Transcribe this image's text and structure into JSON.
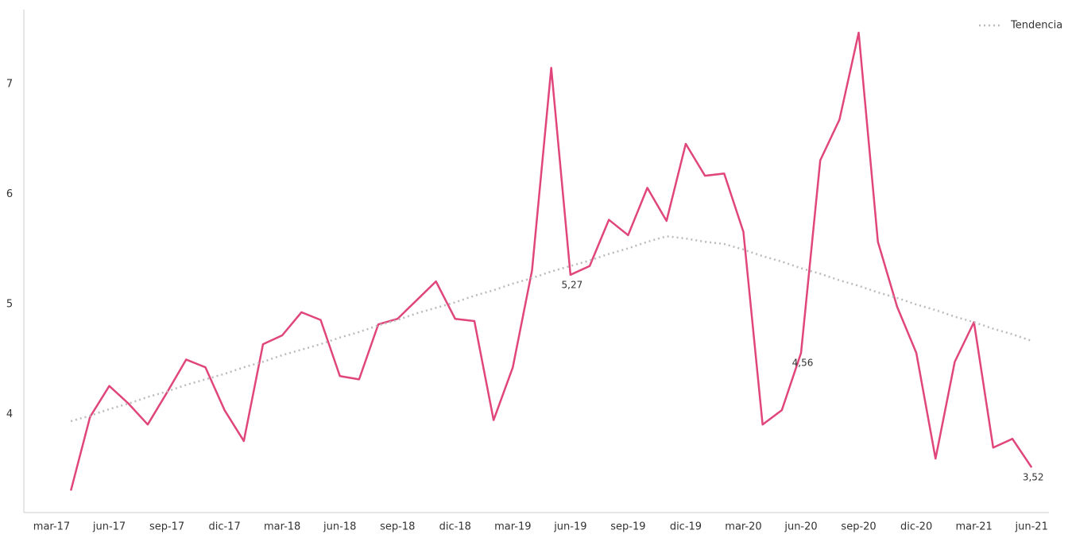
{
  "chart_data": {
    "type": "line",
    "categories": [
      "mar-17",
      null,
      null,
      "jun-17",
      null,
      null,
      "sep-17",
      null,
      null,
      "dic-17",
      null,
      null,
      "mar-18",
      null,
      null,
      "jun-18",
      null,
      null,
      "sep-18",
      null,
      null,
      "dic-18",
      null,
      null,
      "mar-19",
      null,
      null,
      "jun-19",
      null,
      null,
      "sep-19",
      null,
      null,
      "dic-19",
      null,
      null,
      "mar-20",
      null,
      null,
      "jun-20",
      null,
      null,
      "sep-20",
      null,
      null,
      "dic-20",
      null,
      null,
      "mar-21",
      null,
      null,
      "jun-21"
    ],
    "series": [
      {
        "color": "#e0457b",
        "style": "solid",
        "values": [
          null,
          3.31,
          3.98,
          4.26,
          4.1,
          3.91,
          4.2,
          4.5,
          4.43,
          4.04,
          3.76,
          4.64,
          4.72,
          4.93,
          4.86,
          4.35,
          4.32,
          4.82,
          4.87,
          5.04,
          5.21,
          4.87,
          4.85,
          3.95,
          4.43,
          5.31,
          7.15,
          5.27,
          5.35,
          5.77,
          5.63,
          6.06,
          5.76,
          6.46,
          6.17,
          6.19,
          5.66,
          3.91,
          4.04,
          4.56,
          6.31,
          6.68,
          7.47,
          5.57,
          4.98,
          4.56,
          3.6,
          4.48,
          4.84,
          3.7,
          3.78,
          3.52
        ],
        "value_labels": [
          null,
          null,
          null,
          null,
          null,
          null,
          null,
          null,
          null,
          null,
          null,
          null,
          null,
          null,
          null,
          null,
          null,
          null,
          null,
          null,
          null,
          null,
          null,
          null,
          null,
          null,
          null,
          "5,27",
          null,
          null,
          null,
          null,
          null,
          null,
          null,
          null,
          null,
          null,
          null,
          "4,56",
          null,
          null,
          null,
          null,
          null,
          null,
          null,
          null,
          null,
          null,
          null,
          "3,52"
        ]
      },
      {
        "name": "Tendencia",
        "color": "#bbbbbb",
        "style": "dotted",
        "values": [
          null,
          3.94,
          3.99,
          4.05,
          4.1,
          4.16,
          4.21,
          4.27,
          4.32,
          4.37,
          4.43,
          4.48,
          4.54,
          4.59,
          4.64,
          4.7,
          4.75,
          4.81,
          4.86,
          4.92,
          4.97,
          5.02,
          5.08,
          5.13,
          5.19,
          5.24,
          5.3,
          5.35,
          5.4,
          5.46,
          5.51,
          5.57,
          5.62,
          5.6,
          5.57,
          5.55,
          5.5,
          5.44,
          5.39,
          5.33,
          5.28,
          5.22,
          5.17,
          5.11,
          5.06,
          5.0,
          4.95,
          4.89,
          4.84,
          4.78,
          4.73,
          4.67
        ]
      }
    ],
    "ylim": [
      3.11,
      7.68
    ],
    "yticks": [
      4,
      5,
      6,
      7
    ],
    "grid": false,
    "legend": "top-right"
  }
}
